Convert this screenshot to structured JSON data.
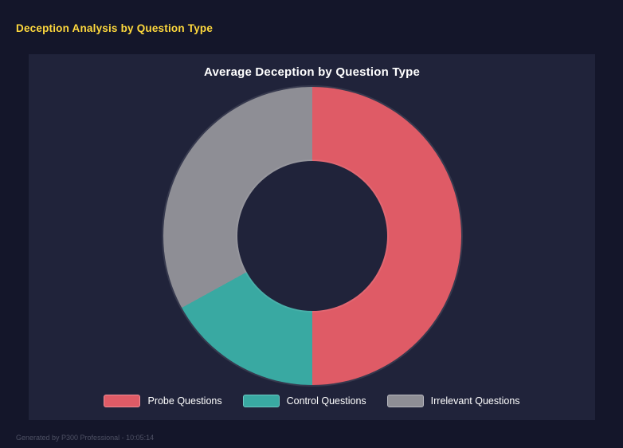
{
  "page": {
    "title": "Deception Analysis by Question Type",
    "footer": "Generated by P300 Professional - 10:05:14"
  },
  "chart_data": {
    "type": "pie",
    "subtype": "donut",
    "title": "Average Deception by Question Type",
    "categories": [
      "Probe Questions",
      "Control Questions",
      "Irrelevant Questions"
    ],
    "values": [
      50,
      17,
      33
    ],
    "unit": "percent_of_ring",
    "colors": [
      "#df5b66",
      "#39a9a2",
      "#8e8e95"
    ],
    "border_colors": [
      "#ef8d96",
      "#6cc9c4",
      "#b8b8bf"
    ],
    "start_angle_deg": 0,
    "direction": "clockwise",
    "inner_radius_ratio": 0.5,
    "legend_position": "bottom",
    "background": "#20233a",
    "page_background": "#14162a",
    "accent_title_color": "#ffd93d"
  }
}
